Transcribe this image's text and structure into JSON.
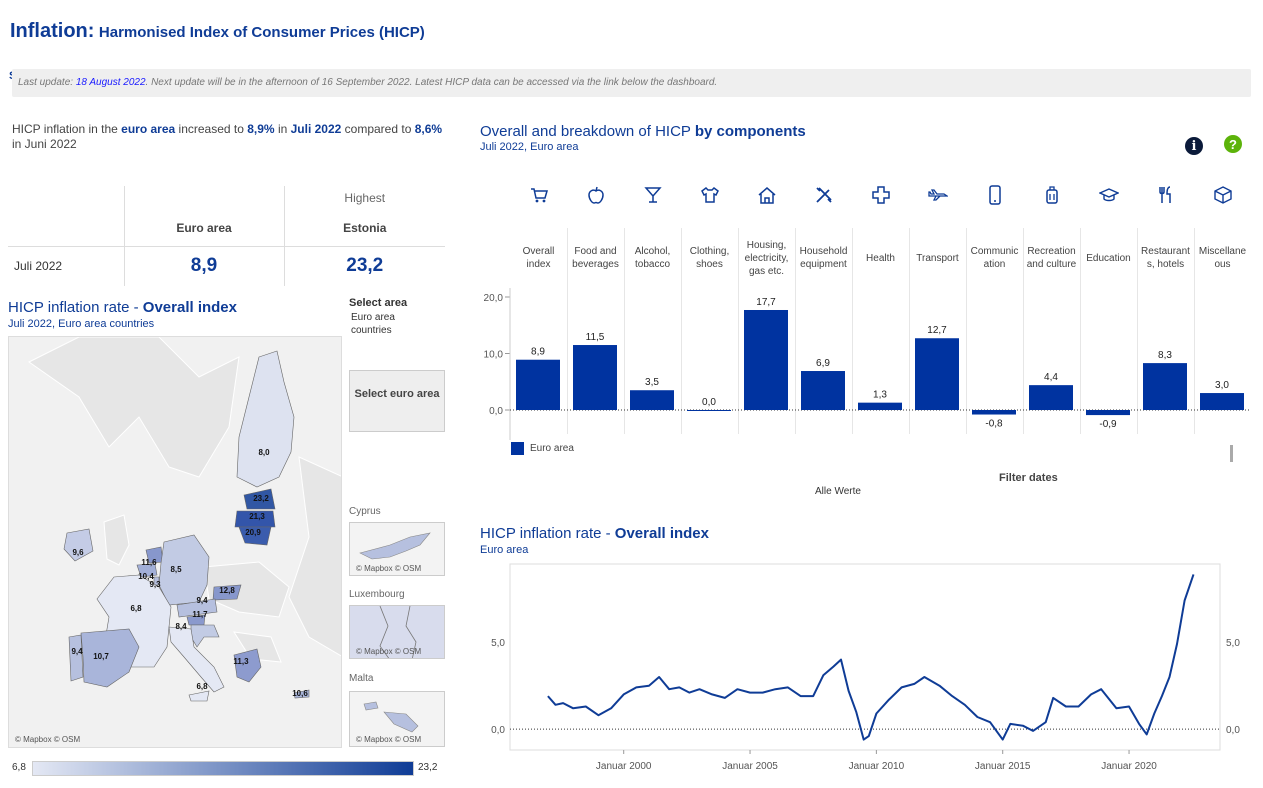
{
  "header": {
    "title_main": "Inflation:",
    "title_sub": "Harmonised Index of Consumer Prices (HICP)",
    "edge_glyph": "S"
  },
  "update": {
    "prefix": "Last update: ",
    "date": "18 August 2022",
    "rest": ". Next update will be in the afternoon of 16 September 2022. Latest HICP data can be accessed via the link below the dashboard."
  },
  "intro": {
    "t1": "HICP inflation in the ",
    "area": "euro area",
    "t2": "  increased to ",
    "rate": "8,9%",
    "t3": " in ",
    "month": "Juli 2022",
    "t4": " compared to ",
    "prev_rate": "8,6%",
    "t5": " in Juni 2022"
  },
  "kpi": {
    "highest_label": "Highest",
    "col1": "Euro area",
    "col2": "Estonia",
    "row_label": "Juli 2022",
    "val1": "8,9",
    "val2": "23,2"
  },
  "map_panel": {
    "title_a": "HICP inflation rate - ",
    "title_b": "Overall index",
    "subtitle": "Juli 2022, Euro area countries",
    "select_label": "Select area",
    "select_value": "Euro area countries",
    "select_button": "Select euro area",
    "attribution": "© Mapbox © OSM",
    "labels": [
      {
        "id": "fi",
        "v": "8,0"
      },
      {
        "id": "ee",
        "v": "23,2"
      },
      {
        "id": "lv",
        "v": "21,3"
      },
      {
        "id": "lt",
        "v": "20,9"
      },
      {
        "id": "ie",
        "v": "9,6"
      },
      {
        "id": "nl",
        "v": "11,6"
      },
      {
        "id": "be",
        "v": "10,4"
      },
      {
        "id": "lu",
        "v": "9,3"
      },
      {
        "id": "de",
        "v": "8,5"
      },
      {
        "id": "sk",
        "v": "12,8"
      },
      {
        "id": "at",
        "v": "9,4"
      },
      {
        "id": "si",
        "v": "11,7"
      },
      {
        "id": "fr",
        "v": "6,8"
      },
      {
        "id": "hr",
        "v": "8,4"
      },
      {
        "id": "pt",
        "v": "9,4"
      },
      {
        "id": "es",
        "v": "10,7"
      },
      {
        "id": "gr",
        "v": "11,3"
      },
      {
        "id": "it",
        "v": "6,8"
      },
      {
        "id": "cy",
        "v": "10,6"
      }
    ],
    "insets": [
      {
        "name": "Cyprus"
      },
      {
        "name": "Luxembourg"
      },
      {
        "name": "Malta"
      }
    ],
    "legend_min": "6,8",
    "legend_max": "23,2"
  },
  "components_panel": {
    "title_a": "Overall and breakdown of HICP ",
    "title_b": "by components",
    "subtitle": "Juli 2022, Euro area",
    "info_icon": "i",
    "help_icon": "?",
    "legend_label": "Euro area",
    "filter_label": "Filter dates",
    "filter_value": "Alle Werte"
  },
  "line_panel": {
    "title_a": "HICP inflation rate - ",
    "title_b": "Overall index",
    "subtitle": "Euro area"
  },
  "colors": {
    "brand": "#0f3c96",
    "bar": "#0033a0",
    "map_high": "#0f3c96",
    "map_low": "#e4e8f4"
  },
  "chart_data": [
    {
      "type": "bar",
      "categories": [
        "Overall index",
        "Food and beverages",
        "Alcohol, tobacco",
        "Clothing, shoes",
        "Housing, electricity, gas etc.",
        "Household equipment",
        "Health",
        "Transport",
        "Communication",
        "Recreation and culture",
        "Education",
        "Restaurants, hotels",
        "Miscellaneous"
      ],
      "category_display": [
        "Overall index",
        "Food and beverages",
        "Alcohol, tobacco",
        "Clothing, shoes",
        "Housing, electricity, gas etc.",
        "Household equipment",
        "Health",
        "Transport",
        "Communic ation",
        "Recreation and culture",
        "Education",
        "Restaurant s, hotels",
        "Miscellane ous"
      ],
      "icons": [
        "cart-icon",
        "apple-icon",
        "cocktail-icon",
        "shirt-icon",
        "house-icon",
        "tools-icon",
        "health-cross-icon",
        "airplane-icon",
        "phone-icon",
        "suitcase-icon",
        "graduation-cap-icon",
        "cutlery-icon",
        "box-icon"
      ],
      "series": [
        {
          "name": "Euro area",
          "values": [
            8.9,
            11.5,
            3.5,
            0.0,
            17.7,
            6.9,
            1.3,
            12.7,
            -0.8,
            4.4,
            -0.9,
            8.3,
            3.0
          ]
        }
      ],
      "value_labels": [
        "8,9",
        "11,5",
        "3,5",
        "0,0",
        "17,7",
        "6,9",
        "1,3",
        "12,7",
        "-0,8",
        "4,4",
        "-0,9",
        "8,3",
        "3,0"
      ],
      "yticks": [
        "0,0",
        "10,0",
        "20,0"
      ],
      "ylim": [
        -2,
        20
      ]
    },
    {
      "type": "line",
      "series": [
        {
          "name": "Euro area",
          "x": [
            1997.0,
            1997.3,
            1997.6,
            1998.0,
            1998.5,
            1999.0,
            1999.5,
            2000.0,
            2000.5,
            2001.0,
            2001.4,
            2001.8,
            2002.2,
            2002.6,
            2003.0,
            2003.5,
            2004.0,
            2004.5,
            2005.0,
            2005.5,
            2006.0,
            2006.5,
            2007.0,
            2007.5,
            2007.9,
            2008.3,
            2008.6,
            2008.9,
            2009.2,
            2009.5,
            2009.7,
            2010.0,
            2010.5,
            2011.0,
            2011.5,
            2011.9,
            2012.5,
            2013.0,
            2013.5,
            2014.0,
            2014.5,
            2015.0,
            2015.3,
            2015.8,
            2016.2,
            2016.7,
            2017.0,
            2017.5,
            2018.0,
            2018.5,
            2018.9,
            2019.5,
            2020.0,
            2020.4,
            2020.7,
            2021.0,
            2021.3,
            2021.6,
            2021.9,
            2022.2,
            2022.55
          ],
          "values": [
            1.9,
            1.4,
            1.5,
            1.2,
            1.3,
            0.8,
            1.2,
            2.0,
            2.4,
            2.5,
            3.0,
            2.3,
            2.4,
            2.1,
            2.3,
            2.0,
            1.8,
            2.3,
            2.1,
            2.1,
            2.3,
            2.4,
            1.9,
            1.9,
            3.1,
            3.6,
            4.0,
            2.2,
            1.0,
            -0.6,
            -0.4,
            0.9,
            1.7,
            2.4,
            2.6,
            3.0,
            2.5,
            1.9,
            1.4,
            0.7,
            0.4,
            -0.6,
            0.3,
            0.2,
            -0.1,
            0.4,
            1.8,
            1.3,
            1.3,
            2.0,
            2.3,
            1.2,
            1.3,
            0.3,
            -0.3,
            0.9,
            1.9,
            3.0,
            4.9,
            7.4,
            8.9
          ]
        }
      ],
      "xticks": [
        "Januar 2000",
        "Januar 2005",
        "Januar 2010",
        "Januar 2015",
        "Januar 2020"
      ],
      "yticks": [
        "0,0",
        "5,0"
      ],
      "ylim": [
        -1.2,
        9.5
      ]
    }
  ]
}
